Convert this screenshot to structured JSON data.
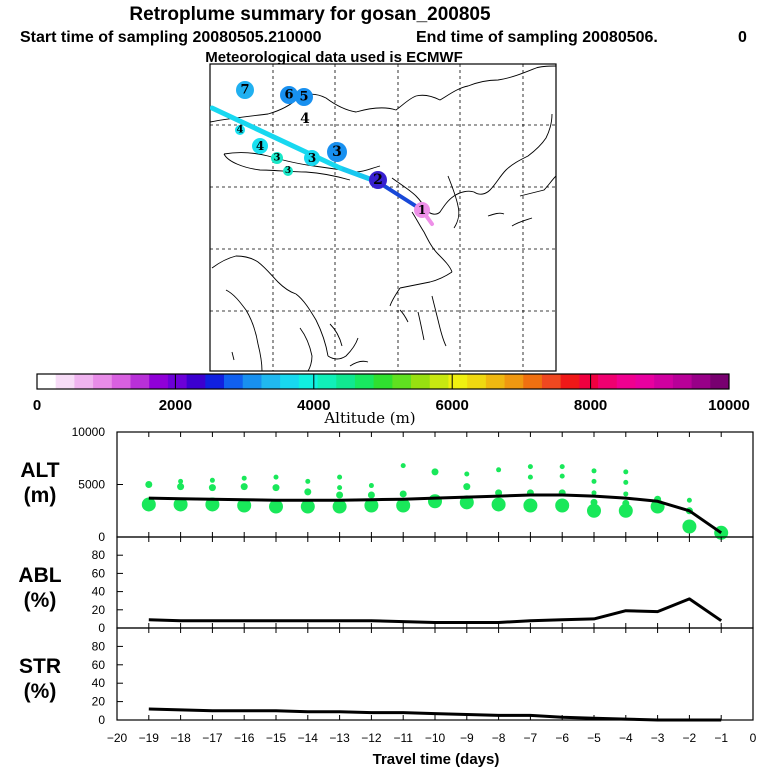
{
  "header": {
    "title": "Retroplume summary for gosan_200805",
    "start_label": "Start time of sampling 20080505.210000",
    "end_label": "End time of sampling 20080506.",
    "end_value": "0",
    "met_label": "Meteorological data used is ECMWF"
  },
  "colorbar": {
    "colors": [
      "#ffffff",
      "#f7dcf7",
      "#f0b4f0",
      "#e88ce8",
      "#d860e0",
      "#b830d8",
      "#9000d8",
      "#6c00d8",
      "#3c00d0",
      "#1020e0",
      "#1060f0",
      "#1890f0",
      "#20b8f0",
      "#18d8f0",
      "#10f0e0",
      "#10f0b8",
      "#10e890",
      "#18e860",
      "#30e030",
      "#60e020",
      "#98e010",
      "#c8e810",
      "#f0f010",
      "#f0d810",
      "#f0b810",
      "#f09810",
      "#f07010",
      "#f04820",
      "#f01818",
      "#f00040",
      "#f00070",
      "#f00090",
      "#e800a0",
      "#d000a0",
      "#b80098",
      "#980088",
      "#780070"
    ],
    "tick_labels": [
      "0",
      "2000",
      "4000",
      "6000",
      "8000",
      "10000"
    ],
    "label": "Altitude (m)"
  },
  "map": {
    "trajectory": [
      {
        "label": "1",
        "color": "#ee90e8"
      },
      {
        "label": "2",
        "color": "#3820d0"
      },
      {
        "label": "3",
        "color": "#1890f0"
      },
      {
        "label": "3",
        "color": "#18d8f0"
      },
      {
        "label": "3",
        "color": "#18e8c8"
      },
      {
        "label": "3",
        "color": "#18e8c8"
      },
      {
        "label": "4",
        "color": "#18e0f0"
      },
      {
        "label": "4",
        "color": "#18e0f0"
      },
      {
        "label": "5",
        "color": "#1890f0"
      },
      {
        "label": "6",
        "color": "#1890f0"
      },
      {
        "label": "7",
        "color": "#20b0f0"
      }
    ]
  },
  "chart_data": [
    {
      "type": "line",
      "panel": "ALT",
      "title": "ALT",
      "ylabel": "(m)",
      "x": [
        -19,
        -18,
        -17,
        -16,
        -15,
        -14,
        -13,
        -12,
        -11,
        -10,
        -9,
        -8,
        -7,
        -6,
        -5,
        -4,
        -3,
        -2,
        -1
      ],
      "xlim": [
        -20,
        0
      ],
      "ylim": [
        0,
        10000
      ],
      "yticks": [
        "10000",
        "5000",
        "0"
      ],
      "series": [
        {
          "name": "mean altitude",
          "values": [
            3700,
            3650,
            3600,
            3550,
            3500,
            3500,
            3500,
            3550,
            3600,
            3700,
            3800,
            3900,
            4000,
            4000,
            3900,
            3700,
            3400,
            2500,
            400
          ]
        }
      ],
      "scatter_clusters": [
        {
          "x": -19,
          "y": [
            5000,
            3100
          ]
        },
        {
          "x": -18,
          "y": [
            5300,
            4800,
            3100
          ]
        },
        {
          "x": -17,
          "y": [
            5400,
            4700,
            3100
          ]
        },
        {
          "x": -16,
          "y": [
            5600,
            4800,
            3000
          ]
        },
        {
          "x": -15,
          "y": [
            5700,
            4700,
            2900
          ]
        },
        {
          "x": -14,
          "y": [
            5300,
            4300,
            2900
          ]
        },
        {
          "x": -13,
          "y": [
            5700,
            4700,
            4000,
            2900
          ]
        },
        {
          "x": -12,
          "y": [
            4900,
            4000,
            3000
          ]
        },
        {
          "x": -11,
          "y": [
            6800,
            4100,
            3000
          ]
        },
        {
          "x": -10,
          "y": [
            6200,
            3400
          ]
        },
        {
          "x": -9,
          "y": [
            6000,
            4800,
            3300
          ]
        },
        {
          "x": -8,
          "y": [
            6400,
            4200,
            3100
          ]
        },
        {
          "x": -7,
          "y": [
            6700,
            5700,
            4200,
            3000
          ]
        },
        {
          "x": -6,
          "y": [
            6700,
            5800,
            4200,
            3000
          ]
        },
        {
          "x": -5,
          "y": [
            6300,
            5300,
            4200,
            3300,
            2500
          ]
        },
        {
          "x": -4,
          "y": [
            6200,
            5200,
            4100,
            3200,
            2500
          ]
        },
        {
          "x": -3,
          "y": [
            3600,
            2900
          ]
        },
        {
          "x": -2,
          "y": [
            3500,
            2500,
            1000
          ]
        },
        {
          "x": -1,
          "y": [
            400
          ]
        }
      ]
    },
    {
      "type": "line",
      "panel": "ABL",
      "title": "ABL",
      "ylabel": "(%)",
      "x": [
        -19,
        -18,
        -17,
        -16,
        -15,
        -14,
        -13,
        -12,
        -11,
        -10,
        -9,
        -8,
        -7,
        -6,
        -5,
        -4,
        -3,
        -2,
        -1
      ],
      "xlim": [
        -20,
        0
      ],
      "ylim": [
        0,
        100
      ],
      "yticks": [
        "0",
        "20",
        "40",
        "60",
        "80"
      ],
      "series": [
        {
          "name": "ABL",
          "values": [
            9,
            8,
            8,
            8,
            8,
            8,
            8,
            8,
            7,
            6,
            6,
            6,
            8,
            9,
            10,
            19,
            18,
            32,
            8
          ]
        }
      ]
    },
    {
      "type": "line",
      "panel": "STR",
      "title": "STR",
      "ylabel": "(%)",
      "x": [
        -19,
        -18,
        -17,
        -16,
        -15,
        -14,
        -13,
        -12,
        -11,
        -10,
        -9,
        -8,
        -7,
        -6,
        -5,
        -4,
        -3,
        -2,
        -1
      ],
      "xlim": [
        -20,
        0
      ],
      "ylim": [
        0,
        100
      ],
      "yticks": [
        "0",
        "20",
        "40",
        "60",
        "80"
      ],
      "xticks": [
        "−20",
        "−19",
        "−18",
        "−17",
        "−16",
        "−15",
        "−14",
        "−13",
        "−12",
        "−11",
        "−10",
        "−9",
        "−8",
        "−7",
        "−6",
        "−5",
        "−4",
        "−3",
        "−2",
        "−1",
        "0"
      ],
      "xlabel": "Travel time (days)",
      "series": [
        {
          "name": "STR",
          "values": [
            12,
            11,
            10,
            10,
            10,
            9,
            9,
            8,
            8,
            7,
            6,
            5,
            5,
            3,
            2,
            1,
            0,
            0,
            0
          ]
        }
      ]
    }
  ]
}
